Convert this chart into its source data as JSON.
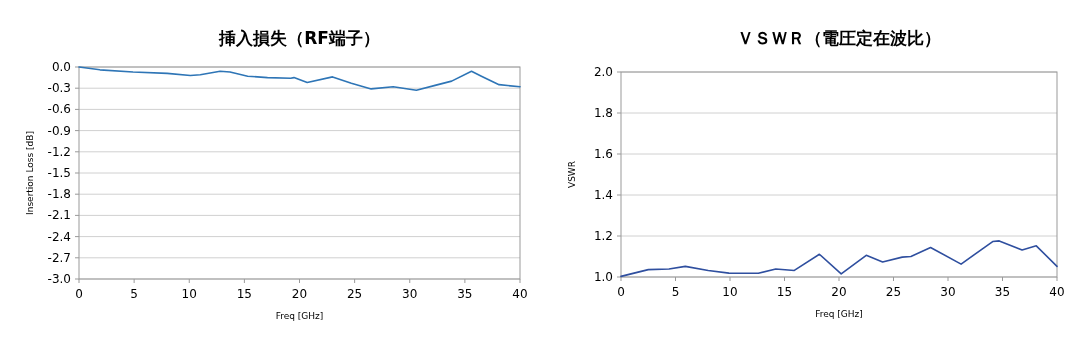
{
  "chart_data": [
    {
      "type": "line",
      "title": "挿入損失（RF端子）",
      "xlabel": "Freq [GHz]",
      "ylabel": "Insertion Loss [dB]",
      "grid": "y",
      "xlim": [
        0,
        40
      ],
      "xticks": [
        0,
        5,
        10,
        15,
        20,
        25,
        30,
        35,
        40
      ],
      "ylim": [
        -3.0,
        0.0
      ],
      "yticks": [
        {
          "value": 0.0,
          "label": "0.0"
        },
        {
          "value": -0.3,
          "label": "-0.3"
        },
        {
          "value": -0.6,
          "label": "-0.6"
        },
        {
          "value": -0.9,
          "label": "-0.9"
        },
        {
          "value": -1.2,
          "label": "-1.2"
        },
        {
          "value": -1.5,
          "label": "-1.5"
        },
        {
          "value": -1.8,
          "label": "-1.8"
        },
        {
          "value": -2.1,
          "label": "-2.1"
        },
        {
          "value": -2.4,
          "label": "-2.4"
        },
        {
          "value": -2.7,
          "label": "-2.7"
        },
        {
          "value": -3.0,
          "label": "-3.0"
        }
      ],
      "series": [
        {
          "color": "#2e75b6",
          "x": [
            0,
            1.9,
            4.9,
            8,
            10.1,
            11,
            12.8,
            13.7,
            15.3,
            17.1,
            19.2,
            19.5,
            20.7,
            23,
            24.7,
            26.5,
            28.5,
            30.6,
            32.3,
            33.8,
            35.6,
            36.5,
            38.1,
            40
          ],
          "values": [
            0.0,
            -0.04,
            -0.07,
            -0.09,
            -0.12,
            -0.11,
            -0.06,
            -0.07,
            -0.13,
            -0.15,
            -0.16,
            -0.15,
            -0.22,
            -0.14,
            -0.23,
            -0.31,
            -0.28,
            -0.33,
            -0.26,
            -0.2,
            -0.06,
            -0.13,
            -0.25,
            -0.28
          ]
        }
      ]
    },
    {
      "type": "line",
      "title": "ＶＳＷＲ（電圧定在波比）",
      "xlabel": "Freq [GHz]",
      "ylabel": "VSWR",
      "grid": "y",
      "xlim": [
        0,
        40
      ],
      "xticks": [
        0,
        5,
        10,
        15,
        20,
        25,
        30,
        35,
        40
      ],
      "ylim": [
        1.0,
        2.0
      ],
      "yticks": [
        {
          "value": 1.0,
          "label": "1.0"
        },
        {
          "value": 1.2,
          "label": "1.2"
        },
        {
          "value": 1.4,
          "label": "1.4"
        },
        {
          "value": 1.6,
          "label": "1.6"
        },
        {
          "value": 1.8,
          "label": "1.8"
        },
        {
          "value": 2.0,
          "label": "2.0"
        }
      ],
      "series": [
        {
          "color": "#2f4f9f",
          "x": [
            0,
            2.5,
            4.4,
            5.9,
            8,
            9.9,
            12.6,
            14.2,
            15.9,
            18.2,
            20.2,
            22.5,
            24,
            25.8,
            26.6,
            28.4,
            31.2,
            34.1,
            34.7,
            36.8,
            38.1,
            40
          ],
          "values": [
            1.003,
            1.036,
            1.039,
            1.052,
            1.032,
            1.019,
            1.018,
            1.039,
            1.032,
            1.111,
            1.015,
            1.106,
            1.073,
            1.097,
            1.1,
            1.144,
            1.063,
            1.173,
            1.176,
            1.132,
            1.152,
            1.052
          ]
        }
      ]
    }
  ]
}
